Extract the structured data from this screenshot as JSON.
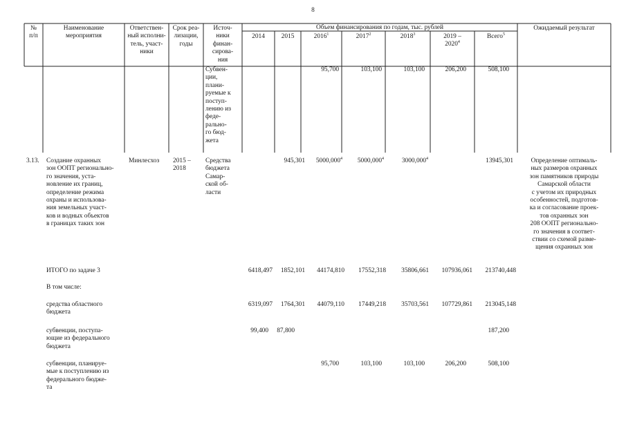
{
  "page_number": "8",
  "header": {
    "num": "№\nп/п",
    "name": "Наименование\nмероприятия",
    "responsible": "Ответствен-\nный исполни-\nтель, участ-\nники",
    "period": "Срок реа-\nлизации,\nгоды",
    "source": "Источ-\nники\nфинан-\nсирова-\nния",
    "funding_title": "Объем финансирования по годам, тыс. рублей",
    "y2014": "2014",
    "y2015": "2015",
    "y2016": "2016",
    "y2016_sup": "1",
    "y2017": "2017",
    "y2017_sup": "2",
    "y2018": "2018",
    "y2018_sup": "3",
    "y2019": "2019 –\n2020",
    "y2019_sup": "4",
    "total": "Всего",
    "total_sup": "5",
    "result": "Ожидаемый результат"
  },
  "row_subsidy": {
    "source": "Субвен-\nции,\nплани-\nруемые к\nпоступ-\nлению из\nфеде-\nрально-\nго бюд-\nжета",
    "v2016": "95,700",
    "v2017": "103,100",
    "v2018": "103,100",
    "v2019": "206,200",
    "total": "508,100"
  },
  "row_313": {
    "num": "3.13.",
    "name": "Создание охранных\nзон ООПТ регионально-\nго значения, уста-\nновление их границ,\nопределение режима\nохраны и использова-\nния земельных участ-\nков и водных объектов\nв границах таких зон",
    "responsible": "Минлесхоз",
    "period": "2015 –\n2018",
    "source": "Средства\nбюджета\nСамар-\nской об-\nласти",
    "v2015": "945,301",
    "v2016": "5000,000",
    "v2016_sup": "4",
    "v2017": "5000,000",
    "v2017_sup": "4",
    "v2018": "3000,000",
    "v2018_sup": "4",
    "total": "13945,301",
    "result": "Определение оптималь-\nных размеров охранных\nзон памятников природы\nСамарской области\nс учетом их природных\nособенностей, подготов-\nка и согласование проек-\nтов охранных зон\n208 ООПТ регионально-\nго значения в соответ-\nствии со схемой разме-\nщения охранных зон"
  },
  "summary": {
    "itogo_label": "ИТОГО по задаче 3",
    "itogo_values": [
      "6418,497",
      "1852,101",
      "44174,810",
      "17552,318",
      "35806,661",
      "107936,061",
      "213740,448"
    ],
    "incl_label": "В том числе:",
    "oblast_label": "средства областного\nбюджета",
    "oblast_values": [
      "6319,097",
      "1764,301",
      "44079,110",
      "17449,218",
      "35703,561",
      "107729,861",
      "213045,148"
    ],
    "fed_label": "субвенции, поступа-\nющие из федерального\nбюджета",
    "fed_2014": "99,400",
    "fed_2015": "87,800",
    "fed_total": "187,200",
    "plan_label": "субвенции, планируе-\nмые к поступлению из\nфедерального бюдже-\nта",
    "plan_2016": "95,700",
    "plan_2017": "103,100",
    "plan_2018": "103,100",
    "plan_2019": "206,200",
    "plan_total": "508,100"
  }
}
